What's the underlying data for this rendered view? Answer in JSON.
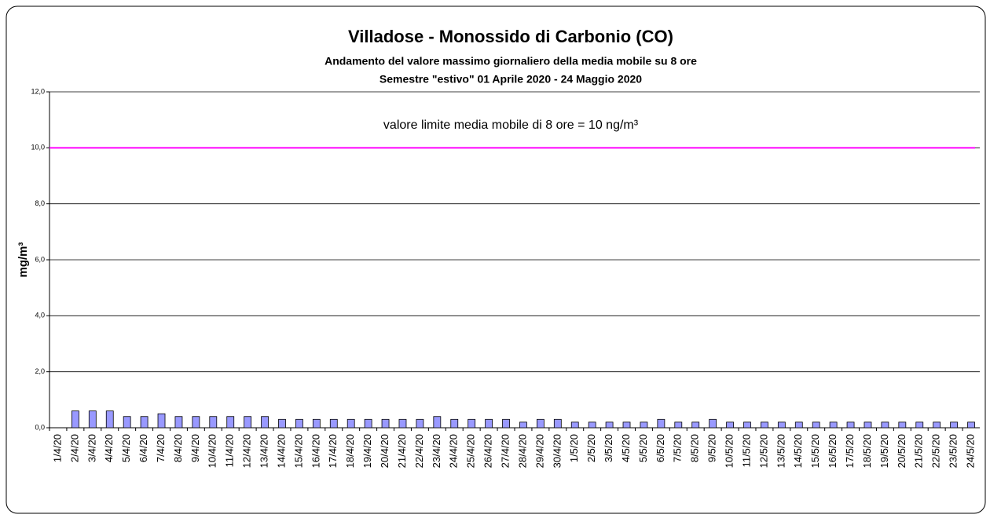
{
  "chart_data": {
    "type": "bar",
    "title": "Villadose - Monossido di Carbonio (CO)",
    "subtitle": "Andamento del valore massimo giornaliero della media mobile su 8 ore",
    "subtitle2": "Semestre \"estivo\" 01 Aprile 2020 - 24 Maggio 2020",
    "y_label": "mg/m³",
    "annotation": "valore limite media mobile di 8 ore = 10 ng/m³",
    "reference_line": {
      "value": 10,
      "color": "#ff00ff"
    },
    "categories": [
      "1/4/20",
      "2/4/20",
      "3/4/20",
      "4/4/20",
      "5/4/20",
      "6/4/20",
      "7/4/20",
      "8/4/20",
      "9/4/20",
      "10/4/20",
      "11/4/20",
      "12/4/20",
      "13/4/20",
      "14/4/20",
      "15/4/20",
      "16/4/20",
      "17/4/20",
      "18/4/20",
      "19/4/20",
      "20/4/20",
      "21/4/20",
      "22/4/20",
      "23/4/20",
      "24/4/20",
      "25/4/20",
      "26/4/20",
      "27/4/20",
      "28/4/20",
      "29/4/20",
      "30/4/20",
      "1/5/20",
      "2/5/20",
      "3/5/20",
      "4/5/20",
      "5/5/20",
      "6/5/20",
      "7/5/20",
      "8/5/20",
      "9/5/20",
      "10/5/20",
      "11/5/20",
      "12/5/20",
      "13/5/20",
      "14/5/20",
      "15/5/20",
      "16/5/20",
      "17/5/20",
      "18/5/20",
      "19/5/20",
      "20/5/20",
      "21/5/20",
      "22/5/20",
      "23/5/20",
      "24/5/20"
    ],
    "values": [
      null,
      0.6,
      0.6,
      0.6,
      0.4,
      0.4,
      0.5,
      0.4,
      0.4,
      0.4,
      0.4,
      0.4,
      0.4,
      0.3,
      0.3,
      0.3,
      0.3,
      0.3,
      0.3,
      0.3,
      0.3,
      0.3,
      0.4,
      0.3,
      0.3,
      0.3,
      0.3,
      0.2,
      0.3,
      0.3,
      0.2,
      0.2,
      0.2,
      0.2,
      0.2,
      0.3,
      0.2,
      0.2,
      0.3,
      0.2,
      0.2,
      0.2,
      0.2,
      0.2,
      0.2,
      0.2,
      0.2,
      0.2,
      0.2,
      0.2,
      0.2,
      0.2,
      0.2,
      0.2
    ],
    "color": "#9999ff",
    "ylim": [
      0,
      12
    ],
    "yticks": [
      {
        "value": 0,
        "label": "0,0"
      },
      {
        "value": 2,
        "label": "2,0"
      },
      {
        "value": 4,
        "label": "4,0"
      },
      {
        "value": 6,
        "label": "6,0"
      },
      {
        "value": 8,
        "label": "8,0"
      },
      {
        "value": 10,
        "label": "10,0"
      },
      {
        "value": 12,
        "label": "12,0"
      }
    ],
    "grid": true
  }
}
